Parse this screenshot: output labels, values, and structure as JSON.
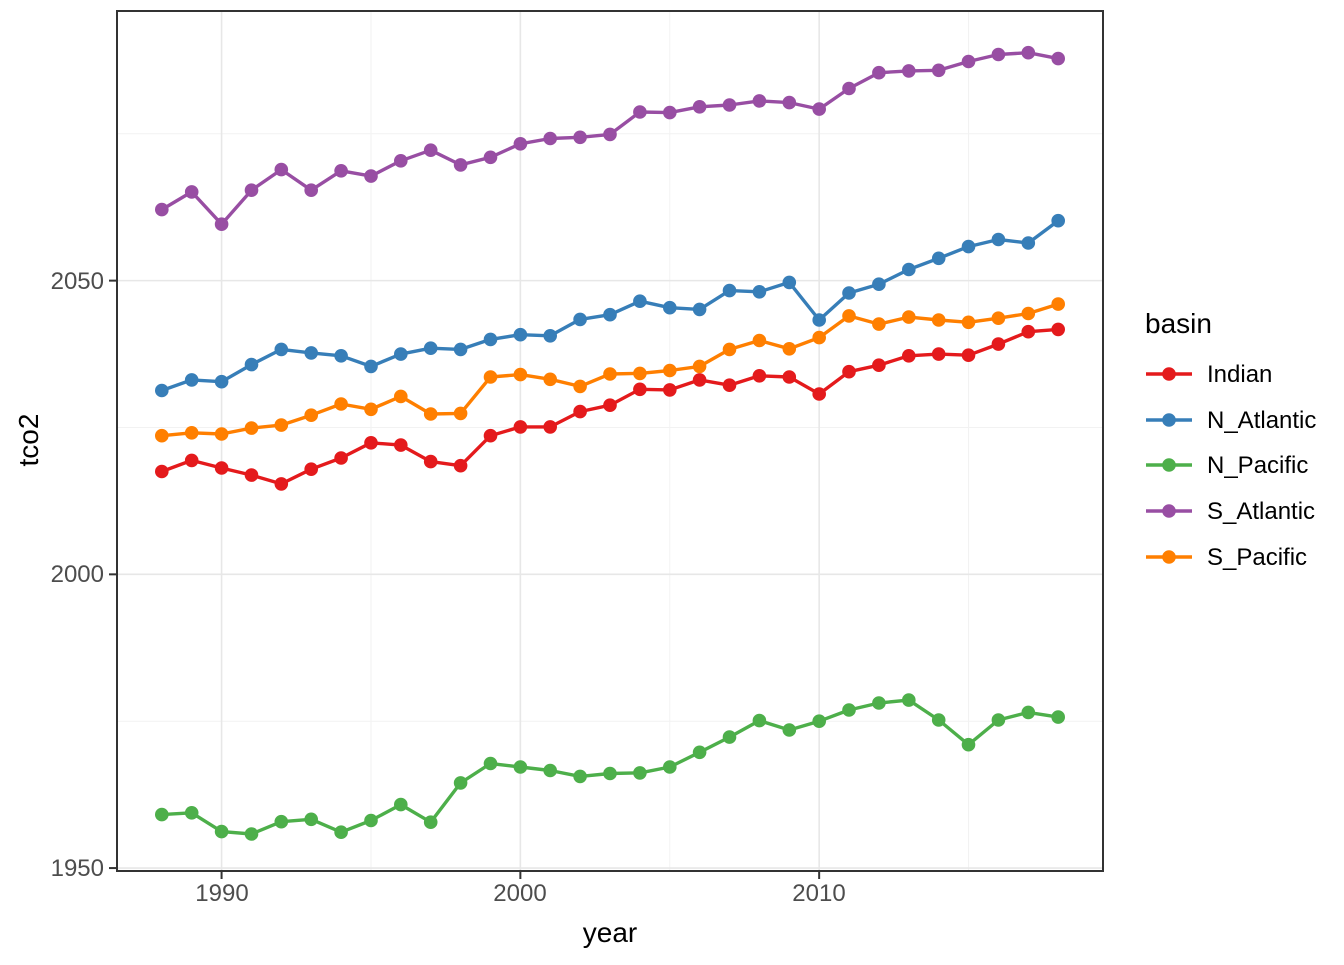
{
  "chart_data": {
    "type": "line",
    "title": "",
    "xlabel": "year",
    "ylabel": "tco2",
    "legend_title": "basin",
    "legend_position": "right",
    "grid": "on",
    "panel_background": "#FFFFFF",
    "grid_major_color": "#E7E7E7",
    "grid_minor_color": "#F2F2F2",
    "axis_text_color": "#4D4D4D",
    "xlim": [
      1986.5,
      2019.5
    ],
    "ylim": [
      1949.5,
      2095.9
    ],
    "x_ticks": [
      1990,
      2000,
      2010
    ],
    "y_ticks": [
      1950,
      2000,
      2050
    ],
    "x_minor_ticks": [
      1995,
      2005,
      2015
    ],
    "y_minor_ticks": [
      1975,
      2025,
      2075
    ],
    "x_tick_labels": [
      "1990",
      "2000",
      "2010"
    ],
    "y_tick_labels": [
      "1950",
      "2000",
      "2050"
    ],
    "x": [
      1988,
      1989,
      1990,
      1991,
      1992,
      1993,
      1994,
      1995,
      1996,
      1997,
      1998,
      1999,
      2000,
      2001,
      2002,
      2003,
      2004,
      2005,
      2006,
      2007,
      2008,
      2009,
      2010,
      2011,
      2012,
      2013,
      2014,
      2015,
      2016,
      2017,
      2018
    ],
    "series": [
      {
        "name": "Indian",
        "color": "#E41A1C",
        "values": [
          2017.5,
          2019.4,
          2018.1,
          2016.9,
          2015.4,
          2017.9,
          2019.8,
          2022.4,
          2022.0,
          2019.2,
          2018.5,
          2023.6,
          2025.1,
          2025.1,
          2027.7,
          2028.8,
          2031.5,
          2031.4,
          2033.1,
          2032.2,
          2033.8,
          2033.6,
          2030.7,
          2034.5,
          2035.6,
          2037.2,
          2037.5,
          2037.3,
          2039.2,
          2041.3,
          2041.7
        ]
      },
      {
        "name": "N_Atlantic",
        "color": "#377EB8",
        "values": [
          2031.3,
          2033.1,
          2032.8,
          2035.7,
          2038.3,
          2037.7,
          2037.2,
          2035.4,
          2037.5,
          2038.5,
          2038.3,
          2040.0,
          2040.8,
          2040.6,
          2043.4,
          2044.2,
          2046.5,
          2045.4,
          2045.1,
          2048.3,
          2048.1,
          2049.7,
          2043.3,
          2047.9,
          2049.4,
          2051.9,
          2053.8,
          2055.8,
          2057.0,
          2056.4,
          2060.2
        ]
      },
      {
        "name": "N_Pacific",
        "color": "#4DAF4A",
        "values": [
          1959.1,
          1959.4,
          1956.2,
          1955.8,
          1957.9,
          1958.3,
          1956.1,
          1958.1,
          1960.8,
          1957.8,
          1964.5,
          1967.8,
          1967.2,
          1966.6,
          1965.6,
          1966.1,
          1966.2,
          1967.2,
          1969.7,
          1972.3,
          1975.1,
          1973.5,
          1975.0,
          1976.9,
          1978.1,
          1978.6,
          1975.2,
          1971.0,
          1975.2,
          1976.5,
          1975.7
        ]
      },
      {
        "name": "S_Atlantic",
        "color": "#984EA3",
        "values": [
          2062.1,
          2065.1,
          2059.6,
          2065.4,
          2068.9,
          2065.4,
          2068.7,
          2067.8,
          2070.4,
          2072.2,
          2069.7,
          2071.0,
          2073.3,
          2074.2,
          2074.4,
          2074.9,
          2078.7,
          2078.6,
          2079.6,
          2079.9,
          2080.6,
          2080.3,
          2079.2,
          2082.7,
          2085.4,
          2085.7,
          2085.8,
          2087.3,
          2088.5,
          2088.8,
          2087.8
        ]
      },
      {
        "name": "S_Pacific",
        "color": "#FF7F00",
        "values": [
          2023.6,
          2024.1,
          2023.9,
          2024.9,
          2025.4,
          2027.1,
          2029.0,
          2028.1,
          2030.3,
          2027.3,
          2027.4,
          2033.6,
          2034.0,
          2033.2,
          2032.0,
          2034.1,
          2034.2,
          2034.7,
          2035.4,
          2038.3,
          2039.8,
          2038.4,
          2040.3,
          2044.0,
          2042.6,
          2043.8,
          2043.3,
          2042.9,
          2043.6,
          2044.4,
          2046.0
        ]
      }
    ]
  }
}
